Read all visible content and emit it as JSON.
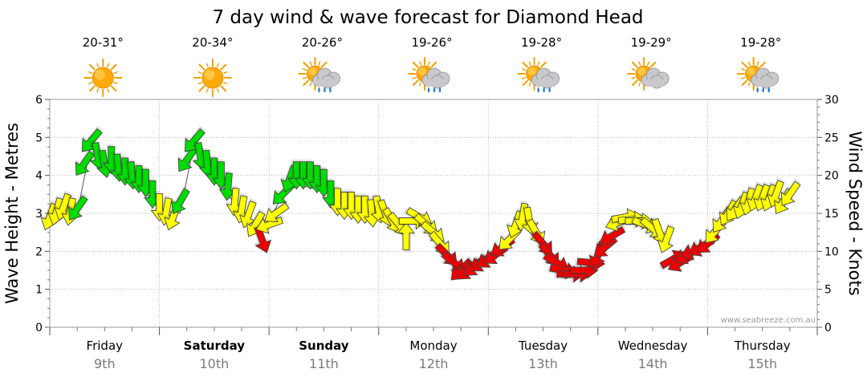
{
  "chart_data": {
    "type": "line",
    "title": "7 day wind & wave forecast for Diamond Head",
    "ylabel_left": "Wave Height - Metres",
    "ylabel_right": "Wind Speed - Knots",
    "ylim_left": [
      0,
      6
    ],
    "ylim_right": [
      0,
      30
    ],
    "yticks_left": [
      "0",
      "1",
      "2",
      "3",
      "4",
      "5",
      "6"
    ],
    "yticks_right": [
      "0",
      "5",
      "10",
      "15",
      "20",
      "25",
      "30"
    ],
    "grid": true,
    "credit": "www.seabreeze.com.au",
    "colors": {
      "strong": "#00dd00",
      "moderate": "#ffff00",
      "light": "#ee0000",
      "outline": "#444444"
    },
    "days": [
      {
        "name": "Friday",
        "date": "9th",
        "temp": "20-31°",
        "weather": "sunny-icon",
        "bold": false
      },
      {
        "name": "Saturday",
        "date": "10th",
        "temp": "20-34°",
        "weather": "sunny-icon",
        "bold": true
      },
      {
        "name": "Sunday",
        "date": "11th",
        "temp": "20-26°",
        "weather": "sun-cloud-rain-icon",
        "bold": true
      },
      {
        "name": "Monday",
        "date": "12th",
        "temp": "19-26°",
        "weather": "sun-cloud-rain-icon",
        "bold": false
      },
      {
        "name": "Tuesday",
        "date": "13th",
        "temp": "19-28°",
        "weather": "sun-cloud-rain-icon",
        "bold": false
      },
      {
        "name": "Wednesday",
        "date": "14th",
        "temp": "19-29°",
        "weather": "sun-cloud-icon",
        "bold": false
      },
      {
        "name": "Thursday",
        "date": "15th",
        "temp": "19-28°",
        "weather": "sun-cloud-rain-icon",
        "bold": false
      }
    ],
    "wind_unit": "knots",
    "wind_series": [
      {
        "t": 0.0,
        "speed": 14.5,
        "dir": 200,
        "cat": "moderate"
      },
      {
        "t": 0.125,
        "speed": 15.2,
        "dir": 195,
        "cat": "moderate"
      },
      {
        "t": 0.25,
        "speed": 15.8,
        "dir": 200,
        "cat": "moderate"
      },
      {
        "t": 0.375,
        "speed": 15.2,
        "dir": 190,
        "cat": "moderate"
      },
      {
        "t": 0.5,
        "speed": 15.6,
        "dir": 215,
        "cat": "strong"
      },
      {
        "t": 0.625,
        "speed": 21.5,
        "dir": 215,
        "cat": "strong"
      },
      {
        "t": 0.75,
        "speed": 24.5,
        "dir": 220,
        "cat": "strong"
      },
      {
        "t": 0.875,
        "speed": 22.5,
        "dir": 170,
        "cat": "strong"
      },
      {
        "t": 1.0,
        "speed": 21.5,
        "dir": 170,
        "cat": "strong"
      },
      {
        "t": 1.125,
        "speed": 22.0,
        "dir": 180,
        "cat": "strong"
      },
      {
        "t": 1.25,
        "speed": 21.0,
        "dir": 175,
        "cat": "strong"
      },
      {
        "t": 1.375,
        "speed": 20.5,
        "dir": 180,
        "cat": "strong"
      },
      {
        "t": 1.5,
        "speed": 20.0,
        "dir": 175,
        "cat": "strong"
      },
      {
        "t": 1.625,
        "speed": 19.5,
        "dir": 180,
        "cat": "strong"
      },
      {
        "t": 1.75,
        "speed": 19.0,
        "dir": 180,
        "cat": "strong"
      },
      {
        "t": 1.875,
        "speed": 17.5,
        "dir": 180,
        "cat": "strong"
      },
      {
        "t": 2.0,
        "speed": 15.8,
        "dir": 180,
        "cat": "moderate"
      },
      {
        "t": 2.125,
        "speed": 15.2,
        "dir": 190,
        "cat": "moderate"
      },
      {
        "t": 2.25,
        "speed": 14.5,
        "dir": 200,
        "cat": "moderate"
      },
      {
        "t": 2.375,
        "speed": 16.5,
        "dir": 210,
        "cat": "strong"
      },
      {
        "t": 2.5,
        "speed": 22.0,
        "dir": 215,
        "cat": "strong"
      },
      {
        "t": 2.625,
        "speed": 24.5,
        "dir": 220,
        "cat": "strong"
      },
      {
        "t": 2.75,
        "speed": 22.5,
        "dir": 170,
        "cat": "strong"
      },
      {
        "t": 2.875,
        "speed": 21.5,
        "dir": 175,
        "cat": "strong"
      },
      {
        "t": 3.0,
        "speed": 20.5,
        "dir": 180,
        "cat": "strong"
      },
      {
        "t": 3.125,
        "speed": 20.0,
        "dir": 180,
        "cat": "strong"
      },
      {
        "t": 3.25,
        "speed": 18.5,
        "dir": 185,
        "cat": "strong"
      },
      {
        "t": 3.375,
        "speed": 16.5,
        "dir": 185,
        "cat": "moderate"
      },
      {
        "t": 3.5,
        "speed": 15.5,
        "dir": 190,
        "cat": "moderate"
      },
      {
        "t": 3.625,
        "speed": 14.8,
        "dir": 200,
        "cat": "moderate"
      },
      {
        "t": 3.75,
        "speed": 13.5,
        "dir": 210,
        "cat": "moderate"
      },
      {
        "t": 3.875,
        "speed": 11.5,
        "dir": 160,
        "cat": "light"
      },
      {
        "t": 4.0,
        "speed": 13.5,
        "dir": 250,
        "cat": "moderate"
      },
      {
        "t": 4.125,
        "speed": 15.0,
        "dir": 235,
        "cat": "moderate"
      },
      {
        "t": 4.25,
        "speed": 17.5,
        "dir": 225,
        "cat": "strong"
      },
      {
        "t": 4.375,
        "speed": 19.5,
        "dir": 200,
        "cat": "strong"
      },
      {
        "t": 4.5,
        "speed": 20.0,
        "dir": 180,
        "cat": "strong"
      },
      {
        "t": 4.625,
        "speed": 20.0,
        "dir": 180,
        "cat": "strong"
      },
      {
        "t": 4.75,
        "speed": 20.0,
        "dir": 180,
        "cat": "strong"
      },
      {
        "t": 4.875,
        "speed": 19.5,
        "dir": 180,
        "cat": "strong"
      },
      {
        "t": 5.0,
        "speed": 19.0,
        "dir": 180,
        "cat": "strong"
      },
      {
        "t": 5.125,
        "speed": 17.5,
        "dir": 180,
        "cat": "strong"
      },
      {
        "t": 5.25,
        "speed": 16.5,
        "dir": 180,
        "cat": "moderate"
      },
      {
        "t": 5.375,
        "speed": 16.0,
        "dir": 180,
        "cat": "moderate"
      },
      {
        "t": 5.5,
        "speed": 16.0,
        "dir": 180,
        "cat": "moderate"
      },
      {
        "t": 5.625,
        "speed": 15.5,
        "dir": 180,
        "cat": "moderate"
      },
      {
        "t": 5.75,
        "speed": 15.5,
        "dir": 180,
        "cat": "moderate"
      },
      {
        "t": 5.875,
        "speed": 15.0,
        "dir": 175,
        "cat": "moderate"
      },
      {
        "t": 6.0,
        "speed": 15.5,
        "dir": 170,
        "cat": "moderate"
      },
      {
        "t": 6.125,
        "speed": 15.0,
        "dir": 160,
        "cat": "moderate"
      },
      {
        "t": 6.25,
        "speed": 14.0,
        "dir": 150,
        "cat": "moderate"
      },
      {
        "t": 6.375,
        "speed": 13.5,
        "dir": 140,
        "cat": "moderate"
      },
      {
        "t": 6.5,
        "speed": 12.0,
        "dir": 0,
        "cat": "moderate"
      },
      {
        "t": 6.625,
        "speed": 14.0,
        "dir": 90,
        "cat": "moderate"
      },
      {
        "t": 6.75,
        "speed": 14.5,
        "dir": 120,
        "cat": "moderate"
      },
      {
        "t": 6.875,
        "speed": 13.5,
        "dir": 130,
        "cat": "moderate"
      },
      {
        "t": 7.0,
        "speed": 12.5,
        "dir": 130,
        "cat": "moderate"
      },
      {
        "t": 7.125,
        "speed": 11.0,
        "dir": 140,
        "cat": "moderate"
      },
      {
        "t": 7.25,
        "speed": 9.5,
        "dir": 135,
        "cat": "light"
      },
      {
        "t": 7.375,
        "speed": 8.5,
        "dir": 130,
        "cat": "light"
      },
      {
        "t": 7.5,
        "speed": 7.5,
        "dir": 225,
        "cat": "light"
      },
      {
        "t": 7.625,
        "speed": 7.5,
        "dir": 230,
        "cat": "light"
      },
      {
        "t": 7.75,
        "speed": 8.0,
        "dir": 230,
        "cat": "light"
      },
      {
        "t": 7.875,
        "speed": 8.5,
        "dir": 235,
        "cat": "light"
      },
      {
        "t": 8.0,
        "speed": 9.0,
        "dir": 235,
        "cat": "light"
      },
      {
        "t": 8.125,
        "speed": 9.5,
        "dir": 235,
        "cat": "light"
      },
      {
        "t": 8.25,
        "speed": 10.5,
        "dir": 235,
        "cat": "light"
      },
      {
        "t": 8.375,
        "speed": 11.5,
        "dir": 225,
        "cat": "moderate"
      },
      {
        "t": 8.5,
        "speed": 13.5,
        "dir": 200,
        "cat": "moderate"
      },
      {
        "t": 8.625,
        "speed": 14.5,
        "dir": 190,
        "cat": "moderate"
      },
      {
        "t": 8.75,
        "speed": 14.0,
        "dir": 170,
        "cat": "moderate"
      },
      {
        "t": 8.875,
        "speed": 12.5,
        "dir": 150,
        "cat": "moderate"
      },
      {
        "t": 9.0,
        "speed": 11.0,
        "dir": 140,
        "cat": "light"
      },
      {
        "t": 9.125,
        "speed": 9.5,
        "dir": 140,
        "cat": "light"
      },
      {
        "t": 9.25,
        "speed": 8.5,
        "dir": 120,
        "cat": "light"
      },
      {
        "t": 9.375,
        "speed": 7.5,
        "dir": 100,
        "cat": "light"
      },
      {
        "t": 9.5,
        "speed": 7.0,
        "dir": 90,
        "cat": "light"
      },
      {
        "t": 9.625,
        "speed": 7.0,
        "dir": 90,
        "cat": "light"
      },
      {
        "t": 9.75,
        "speed": 7.5,
        "dir": 90,
        "cat": "light"
      },
      {
        "t": 9.875,
        "speed": 8.5,
        "dir": 95,
        "cat": "light"
      },
      {
        "t": 10.0,
        "speed": 9.5,
        "dir": 200,
        "cat": "light"
      },
      {
        "t": 10.125,
        "speed": 10.5,
        "dir": 230,
        "cat": "light"
      },
      {
        "t": 10.25,
        "speed": 12.0,
        "dir": 240,
        "cat": "light"
      },
      {
        "t": 10.375,
        "speed": 13.8,
        "dir": 250,
        "cat": "moderate"
      },
      {
        "t": 10.5,
        "speed": 14.5,
        "dir": 80,
        "cat": "moderate"
      },
      {
        "t": 10.625,
        "speed": 14.2,
        "dir": 85,
        "cat": "moderate"
      },
      {
        "t": 10.75,
        "speed": 14.0,
        "dir": 90,
        "cat": "moderate"
      },
      {
        "t": 10.875,
        "speed": 13.5,
        "dir": 110,
        "cat": "moderate"
      },
      {
        "t": 11.0,
        "speed": 13.0,
        "dir": 130,
        "cat": "moderate"
      },
      {
        "t": 11.125,
        "speed": 12.5,
        "dir": 160,
        "cat": "moderate"
      },
      {
        "t": 11.25,
        "speed": 11.5,
        "dir": 200,
        "cat": "moderate"
      },
      {
        "t": 11.375,
        "speed": 9.0,
        "dir": 60,
        "cat": "light"
      },
      {
        "t": 11.5,
        "speed": 8.5,
        "dir": 240,
        "cat": "light"
      },
      {
        "t": 11.625,
        "speed": 9.5,
        "dir": 240,
        "cat": "light"
      },
      {
        "t": 11.75,
        "speed": 10.0,
        "dir": 250,
        "cat": "light"
      },
      {
        "t": 11.875,
        "speed": 10.5,
        "dir": 240,
        "cat": "light"
      },
      {
        "t": 12.0,
        "speed": 11.0,
        "dir": 230,
        "cat": "light"
      },
      {
        "t": 12.125,
        "speed": 12.5,
        "dir": 220,
        "cat": "moderate"
      },
      {
        "t": 12.25,
        "speed": 14.0,
        "dir": 215,
        "cat": "moderate"
      },
      {
        "t": 12.375,
        "speed": 15.0,
        "dir": 210,
        "cat": "moderate"
      },
      {
        "t": 12.5,
        "speed": 15.5,
        "dir": 215,
        "cat": "moderate"
      },
      {
        "t": 12.625,
        "speed": 16.0,
        "dir": 200,
        "cat": "moderate"
      },
      {
        "t": 12.75,
        "speed": 16.5,
        "dir": 195,
        "cat": "moderate"
      },
      {
        "t": 12.875,
        "speed": 17.0,
        "dir": 200,
        "cat": "moderate"
      },
      {
        "t": 13.0,
        "speed": 17.0,
        "dir": 200,
        "cat": "moderate"
      },
      {
        "t": 13.125,
        "speed": 17.0,
        "dir": 200,
        "cat": "moderate"
      },
      {
        "t": 13.25,
        "speed": 17.5,
        "dir": 200,
        "cat": "moderate"
      },
      {
        "t": 13.375,
        "speed": 16.5,
        "dir": 210,
        "cat": "moderate"
      },
      {
        "t": 13.5,
        "speed": 17.5,
        "dir": 215,
        "cat": "moderate"
      }
    ],
    "wave_series": [
      {
        "t": 0.0,
        "height": 2.9
      },
      {
        "t": 0.5,
        "height": 3.0
      },
      {
        "t": 0.75,
        "height": 4.8
      },
      {
        "t": 1.0,
        "height": 4.4
      },
      {
        "t": 1.5,
        "height": 4.0
      },
      {
        "t": 2.0,
        "height": 3.1
      },
      {
        "t": 2.375,
        "height": 3.0
      },
      {
        "t": 2.625,
        "height": 4.8
      },
      {
        "t": 3.0,
        "height": 4.0
      },
      {
        "t": 3.5,
        "height": 3.0
      },
      {
        "t": 3.875,
        "height": 2.5
      },
      {
        "t": 4.375,
        "height": 3.8
      },
      {
        "t": 5.0,
        "height": 3.6
      }
    ]
  }
}
